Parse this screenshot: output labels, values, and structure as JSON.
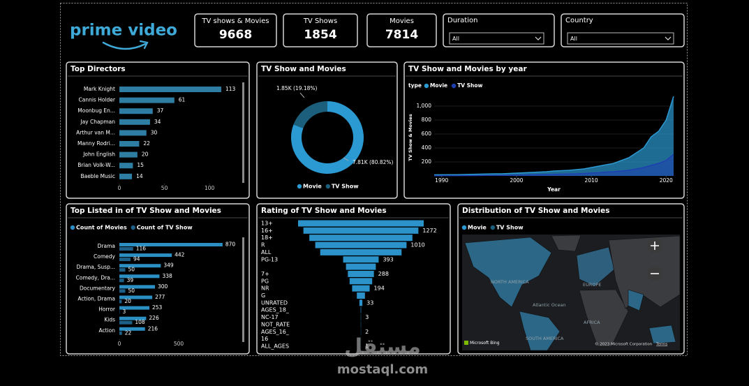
{
  "logo": "prime video",
  "kpis": [
    {
      "label": "TV shows & Movies",
      "value": 9668
    },
    {
      "label": "TV Shows",
      "value": 1854
    },
    {
      "label": "Movies",
      "value": 7814
    }
  ],
  "filters": [
    {
      "label": "Duration",
      "value": "All"
    },
    {
      "label": "Country",
      "value": "All"
    }
  ],
  "chart_data": [
    {
      "type": "bar",
      "orientation": "horizontal",
      "title": "Top Directors",
      "categories": [
        "Mark Knight",
        "Cannis Holder",
        "Moonbug En...",
        "Jay Chapman",
        "Arthur van M...",
        "Manny Rodri...",
        "John English",
        "Brian Volk-W...",
        "Baeble Music"
      ],
      "values": [
        113,
        61,
        37,
        34,
        30,
        22,
        20,
        15,
        14
      ],
      "color": "#2e7ea3",
      "xlim": [
        0,
        120
      ],
      "xticks": [
        0,
        50,
        100
      ]
    },
    {
      "type": "pie",
      "donut": true,
      "title": "TV Show and Movies",
      "categories": [
        "Movie",
        "TV Show"
      ],
      "values": [
        7814,
        1854
      ],
      "value_labels": [
        "7.81K (80.82%)",
        "1.85K (19.18%)"
      ],
      "colors": [
        "#2b9ad2",
        "#1c5f7c"
      ]
    },
    {
      "type": "area",
      "title": "TV Show and Movies by year",
      "legend_title": "type",
      "x": [
        1989,
        1990,
        1991,
        1992,
        1993,
        1994,
        1995,
        1996,
        1997,
        1998,
        1999,
        2000,
        2001,
        2002,
        2003,
        2004,
        2005,
        2006,
        2007,
        2008,
        2009,
        2010,
        2011,
        2012,
        2013,
        2014,
        2015,
        2016,
        2017,
        2018,
        2019,
        2020,
        2021
      ],
      "series": [
        {
          "name": "Movie",
          "color": "#2b9ad2",
          "values": [
            15,
            16,
            18,
            18,
            20,
            22,
            25,
            28,
            30,
            30,
            35,
            40,
            45,
            50,
            55,
            60,
            70,
            75,
            80,
            90,
            100,
            120,
            140,
            160,
            180,
            220,
            260,
            330,
            400,
            560,
            640,
            800,
            1140
          ]
        },
        {
          "name": "TV Show",
          "color": "#1f3fb0",
          "values": [
            3,
            3,
            4,
            4,
            5,
            5,
            6,
            7,
            8,
            9,
            10,
            12,
            14,
            16,
            18,
            20,
            22,
            25,
            28,
            30,
            35,
            40,
            45,
            55,
            60,
            70,
            80,
            100,
            120,
            150,
            180,
            220,
            310
          ]
        }
      ],
      "xlim": [
        1989,
        2021
      ],
      "xticks": [
        1990,
        2000,
        2010,
        2020
      ],
      "ylim": [
        0,
        1220
      ],
      "yticks": [
        200,
        400,
        600,
        800,
        {
          "value": 1000,
          "label": "1,000"
        }
      ],
      "xlabel": "Year",
      "ylabel": "TV Show & Movies"
    },
    {
      "type": "bar",
      "orientation": "horizontal",
      "title": "Top Listed in of TV Show and Movies",
      "categories": [
        "Drama",
        "Comedy",
        "Drama, Susp...",
        "Comedy, Dra...",
        "Documentary",
        "Action, Drama",
        "Horror",
        "Kids",
        "Action"
      ],
      "series": [
        {
          "name": "Count of Movies",
          "color": "#2b8fc4",
          "values": [
            870,
            442,
            349,
            338,
            300,
            277,
            253,
            226,
            216
          ]
        },
        {
          "name": "Count of TV Show",
          "color": "#1d5f86",
          "values": [
            116,
            94,
            50,
            39,
            50,
            20,
            3,
            108,
            22
          ]
        }
      ],
      "xlim": [
        0,
        900
      ],
      "xticks": [
        0,
        500
      ]
    },
    {
      "type": "funnel",
      "title": "Rating of TV Show and Movies",
      "categories": [
        "13+",
        "16+",
        "18+",
        "R",
        "ALL",
        "PG-13",
        null,
        "7+",
        "PG",
        "NR",
        "G",
        "UNRATED",
        "AGES_18_",
        "NC-17",
        "NOT_RATE",
        "AGES_16_",
        "16",
        "ALL_AGES"
      ],
      "values": [
        1390,
        1272,
        1140,
        1010,
        900,
        393,
        330,
        288,
        250,
        194,
        90,
        33,
        5,
        3,
        3,
        2,
        1,
        1
      ],
      "color": "#2b93c9"
    }
  ],
  "map": {
    "title": "Distribution of TV Show and Movies",
    "legend": [
      {
        "name": "Movie",
        "color": "#2b9ad2"
      },
      {
        "name": "TV Show",
        "color": "#1c5f7c"
      }
    ],
    "labels": [
      "NORTH AMERICA",
      "EUROPE",
      "Atlantic Ocean",
      "AFRICA",
      "SOUTH AMERICA"
    ],
    "attribution": "Microsoft Bing",
    "copyright": "© 2023 Microsoft Corporation",
    "terms": "Terms"
  },
  "watermark": {
    "arabic": "مستقل",
    "latin": "mostaql.com"
  }
}
